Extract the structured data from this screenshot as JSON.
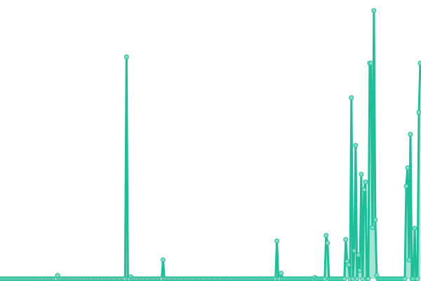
{
  "chart_data": {
    "type": "line",
    "title": "",
    "xlabel": "",
    "ylabel": "",
    "grid": false,
    "legend": "none",
    "markers": true,
    "colors": {
      "line": "#1dbf99",
      "marker_fill": "#84dcc6",
      "area": "#8fdcc8"
    },
    "ylim": [
      0,
      385
    ],
    "values": [
      0,
      0,
      0,
      0,
      0,
      0,
      0,
      0,
      0,
      0,
      0,
      0,
      0,
      0,
      0,
      0,
      0,
      0,
      0,
      0,
      0,
      0,
      0,
      0,
      0,
      0,
      0,
      0,
      0,
      0,
      0,
      0,
      0,
      0,
      0,
      0,
      0,
      0,
      0,
      0,
      0,
      5,
      0,
      0,
      0,
      0,
      0,
      0,
      0,
      0,
      0,
      0,
      0,
      0,
      0,
      0,
      0,
      0,
      0,
      0,
      0,
      0,
      0,
      0,
      0,
      0,
      0,
      0,
      0,
      0,
      0,
      0,
      0,
      0,
      0,
      0,
      0,
      0,
      0,
      0,
      0,
      0,
      0,
      0,
      0,
      0,
      0,
      0,
      0,
      0,
      316,
      0,
      0,
      3,
      0,
      0,
      0,
      0,
      0,
      0,
      0,
      0,
      0,
      0,
      0,
      0,
      0,
      0,
      0,
      0,
      0,
      0,
      0,
      0,
      0,
      0,
      27,
      0,
      0,
      0,
      0,
      0,
      0,
      0,
      0,
      0,
      0,
      0,
      0,
      0,
      0,
      0,
      0,
      0,
      0,
      0,
      0,
      0,
      0,
      0,
      0,
      0,
      0,
      0,
      0,
      0,
      0,
      0,
      0,
      0,
      0,
      0,
      0,
      0,
      0,
      0,
      0,
      0,
      0,
      0,
      0,
      0,
      0,
      0,
      0,
      0,
      0,
      0,
      0,
      0,
      0,
      0,
      0,
      0,
      0,
      0,
      0,
      0,
      0,
      0,
      0,
      0,
      0,
      0,
      0,
      0,
      0,
      0,
      0,
      0,
      0,
      0,
      0,
      0,
      0,
      0,
      0,
      54,
      0,
      0,
      8,
      0,
      0,
      0,
      0,
      0,
      0,
      0,
      0,
      0,
      0,
      0,
      0,
      0,
      0,
      0,
      0,
      0,
      0,
      0,
      0,
      0,
      0,
      0,
      2,
      0,
      0,
      0,
      0,
      0,
      0,
      0,
      62,
      51,
      0,
      0,
      0,
      0,
      0,
      0,
      0,
      0,
      0,
      0,
      0,
      0,
      56,
      25,
      20,
      0,
      258,
      0,
      40,
      190,
      0,
      34,
      12,
      149,
      0,
      127,
      138,
      0,
      0,
      307,
      307,
      73,
      382,
      84,
      5,
      0,
      0,
      0,
      0,
      0,
      0,
      0,
      0,
      0,
      0,
      0,
      0,
      0,
      0,
      0,
      0,
      0,
      0,
      0,
      0,
      132,
      158,
      27,
      206,
      0,
      0,
      72,
      0,
      0,
      237,
      307
    ]
  }
}
